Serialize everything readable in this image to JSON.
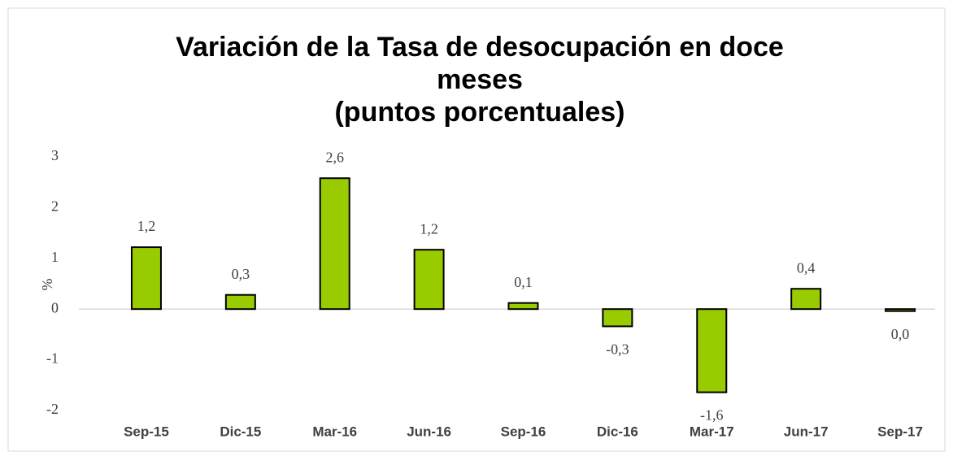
{
  "chart_data": {
    "type": "bar",
    "title": [
      "Variación de la Tasa de desocupación en doce",
      "meses"
    ],
    "subtitle": "(puntos porcentuales)",
    "y_label": "%",
    "categories": [
      "Sep-15",
      "Dic-15",
      "Mar-16",
      "Jun-16",
      "Sep-16",
      "Dic-16",
      "Mar-17",
      "Jun-17",
      "Sep-17"
    ],
    "values": [
      1.22,
      0.28,
      2.58,
      1.17,
      0.12,
      -0.34,
      -1.64,
      0.4,
      -0.04
    ],
    "value_labels": [
      "1,2",
      "0,3",
      "2,6",
      "1,2",
      "0,1",
      "-0,3",
      "-1,6",
      "0,4",
      "0,0"
    ],
    "color": "#99cc00",
    "ylim": [
      -2,
      3
    ],
    "yticks": [
      -2,
      -1,
      0,
      1,
      2,
      3
    ],
    "grid": false
  }
}
